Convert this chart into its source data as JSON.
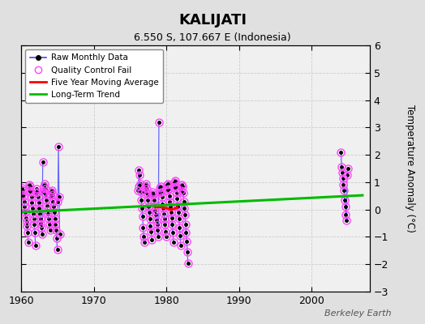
{
  "title": "KALIJATI",
  "subtitle": "6.550 S, 107.667 E (Indonesia)",
  "ylabel": "Temperature Anomaly (°C)",
  "xlabel_note": "Berkeley Earth",
  "ylim": [
    -3,
    6
  ],
  "yticks": [
    -3,
    -2,
    -1,
    0,
    1,
    2,
    3,
    4,
    5,
    6
  ],
  "xlim": [
    1960,
    2008
  ],
  "xticks": [
    1960,
    1970,
    1980,
    1990,
    2000
  ],
  "fig_color": "#e0e0e0",
  "plot_bg_color": "#f0f0f0",
  "raw_data": {
    "years": [
      1960.04,
      1960.12,
      1960.21,
      1960.29,
      1960.38,
      1960.46,
      1960.54,
      1960.63,
      1960.71,
      1960.79,
      1960.88,
      1960.96,
      1961.04,
      1961.12,
      1961.21,
      1961.29,
      1961.38,
      1961.46,
      1961.54,
      1961.63,
      1961.71,
      1961.79,
      1961.88,
      1961.96,
      1962.04,
      1962.12,
      1962.21,
      1962.29,
      1962.38,
      1962.46,
      1962.54,
      1962.63,
      1962.71,
      1962.79,
      1962.88,
      1962.96,
      1963.04,
      1963.12,
      1963.21,
      1963.29,
      1963.38,
      1963.46,
      1963.54,
      1963.63,
      1963.71,
      1963.79,
      1963.88,
      1963.96,
      1964.04,
      1964.12,
      1964.21,
      1964.29,
      1964.38,
      1964.46,
      1964.54,
      1964.63,
      1964.71,
      1964.79,
      1964.88,
      1964.96,
      1965.04,
      1965.12,
      1965.21,
      1965.29,
      1976.04,
      1976.12,
      1976.21,
      1976.29,
      1976.38,
      1976.46,
      1976.54,
      1976.63,
      1976.71,
      1976.79,
      1976.88,
      1976.96,
      1977.04,
      1977.12,
      1977.21,
      1977.29,
      1977.38,
      1977.46,
      1977.54,
      1977.63,
      1977.71,
      1977.79,
      1977.88,
      1977.96,
      1978.04,
      1978.12,
      1978.21,
      1978.29,
      1978.38,
      1978.46,
      1978.54,
      1978.63,
      1978.71,
      1978.79,
      1978.88,
      1978.96,
      1979.04,
      1979.12,
      1979.21,
      1979.29,
      1979.38,
      1979.46,
      1979.54,
      1979.63,
      1979.71,
      1979.79,
      1979.88,
      1979.96,
      1980.04,
      1980.12,
      1980.21,
      1980.29,
      1980.38,
      1980.46,
      1980.54,
      1980.63,
      1980.71,
      1980.79,
      1980.88,
      1980.96,
      1981.04,
      1981.12,
      1981.21,
      1981.29,
      1981.38,
      1981.46,
      1981.54,
      1981.63,
      1981.71,
      1981.79,
      1981.88,
      1981.96,
      1982.04,
      1982.12,
      1982.21,
      1982.29,
      1982.38,
      1982.46,
      1982.54,
      1982.63,
      1982.71,
      1982.79,
      1982.88,
      1982.96,
      2004.04,
      2004.12,
      2004.21,
      2004.29,
      2004.38,
      2004.46,
      2004.54,
      2004.63,
      2004.71,
      2004.79,
      2004.88,
      2004.96
    ],
    "values": [
      0.55,
      0.8,
      0.7,
      0.5,
      0.3,
      0.1,
      -0.1,
      -0.3,
      -0.45,
      -0.6,
      -0.85,
      -1.2,
      0.7,
      0.9,
      0.85,
      0.65,
      0.45,
      0.25,
      0.05,
      -0.15,
      -0.35,
      -0.55,
      -0.85,
      -1.3,
      0.6,
      0.75,
      0.65,
      0.45,
      0.25,
      0.05,
      -0.15,
      -0.35,
      -0.5,
      -0.65,
      -0.9,
      1.75,
      0.65,
      0.85,
      0.95,
      0.75,
      0.55,
      0.35,
      0.15,
      -0.05,
      -0.15,
      -0.35,
      -0.55,
      -0.75,
      0.5,
      0.65,
      0.7,
      0.55,
      0.3,
      0.1,
      -0.1,
      -0.35,
      -0.55,
      -0.75,
      -1.05,
      -1.45,
      0.3,
      2.3,
      0.45,
      -0.9,
      0.7,
      0.85,
      1.45,
      1.25,
      0.95,
      0.65,
      0.35,
      0.05,
      -0.25,
      -0.65,
      -1.0,
      -1.2,
      0.65,
      0.85,
      0.95,
      0.75,
      0.55,
      0.35,
      0.1,
      -0.1,
      -0.35,
      -0.6,
      -0.8,
      -1.1,
      0.55,
      0.65,
      0.55,
      0.35,
      0.15,
      -0.05,
      -0.2,
      -0.4,
      -0.55,
      -0.75,
      -1.0,
      3.2,
      0.6,
      0.8,
      0.85,
      0.65,
      0.45,
      0.2,
      0.05,
      -0.15,
      -0.35,
      -0.55,
      -0.8,
      -1.0,
      0.7,
      0.9,
      0.95,
      0.75,
      0.5,
      0.3,
      0.1,
      -0.1,
      -0.3,
      -0.55,
      -0.85,
      -1.2,
      0.8,
      1.0,
      1.05,
      0.85,
      0.6,
      0.4,
      0.1,
      -0.1,
      -0.35,
      -0.65,
      -0.95,
      -1.3,
      0.7,
      0.9,
      0.85,
      0.6,
      0.3,
      0.05,
      -0.2,
      -0.55,
      -0.85,
      -1.15,
      -1.55,
      -1.95,
      2.1,
      1.55,
      1.35,
      1.15,
      0.9,
      0.7,
      0.35,
      0.1,
      -0.2,
      -0.4,
      1.25,
      1.5
    ],
    "segment_breaks": [
      11,
      23,
      35,
      47,
      59,
      63,
      75,
      87,
      99,
      111,
      123,
      135,
      147
    ]
  },
  "moving_avg": {
    "years": [
      1978.5,
      1979.0,
      1979.5,
      1980.0,
      1980.5,
      1981.0,
      1981.5
    ],
    "values": [
      0.08,
      0.1,
      0.07,
      0.05,
      0.0,
      0.02,
      0.08
    ]
  },
  "trend": {
    "x": [
      1960,
      2007
    ],
    "y": [
      -0.1,
      0.52
    ]
  },
  "raw_line_color": "#4444ff",
  "raw_dot_color": "#000000",
  "qc_marker_color": "#ff44ff",
  "moving_avg_color": "#ff0000",
  "trend_color": "#00bb00",
  "legend_bg": "#ffffff"
}
